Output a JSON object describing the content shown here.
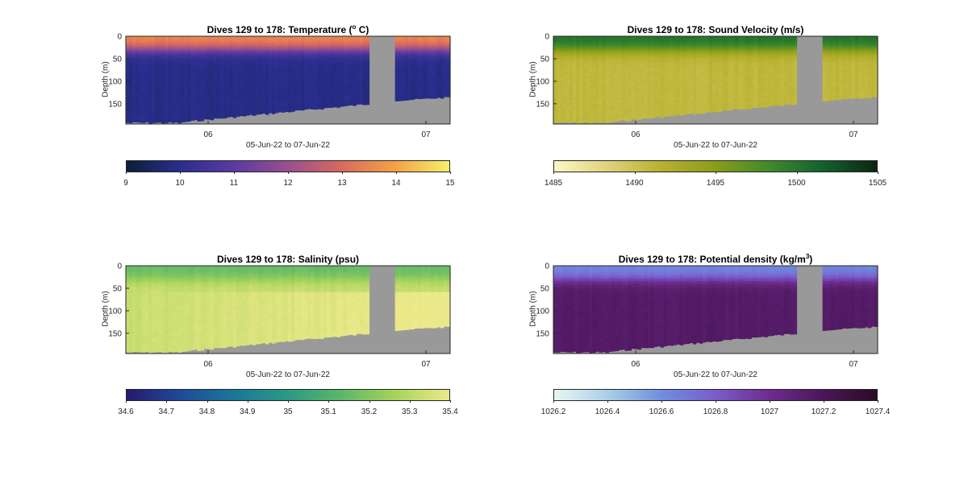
{
  "chart_data": [
    {
      "type": "heatmap",
      "title_main": "Dives 129 to 178: Temperature (",
      "title_sup": "o",
      "title_tail": " C)",
      "ylabel": "Depth (m)",
      "xlabel": "05-Jun-22 to 07-Jun-22",
      "x_ticks": [
        "06",
        "07"
      ],
      "y_ticks": [
        "0",
        "50",
        "100",
        "150"
      ],
      "ylim": [
        195,
        0
      ],
      "colorbar_ticks": [
        "9",
        "10",
        "11",
        "12",
        "13",
        "14",
        "15"
      ],
      "colorbar_range": [
        9,
        15
      ],
      "colormap": [
        "#0b1f3a",
        "#2a2e8f",
        "#5a3aa0",
        "#9a4f8f",
        "#d86a5e",
        "#f6a244",
        "#f4f06a"
      ],
      "profile": {
        "surface": 13.6,
        "thermo_depth": 30,
        "deep": 9.9
      }
    },
    {
      "type": "heatmap",
      "title_main": "Dives 129 to 178: Sound Velocity (m/s)",
      "title_sup": "",
      "title_tail": "",
      "ylabel": "Depth (m)",
      "xlabel": "05-Jun-22 to 07-Jun-22",
      "x_ticks": [
        "06",
        "07"
      ],
      "y_ticks": [
        "0",
        "50",
        "100",
        "150"
      ],
      "ylim": [
        195,
        0
      ],
      "colorbar_ticks": [
        "1485",
        "1490",
        "1495",
        "1500",
        "1505"
      ],
      "colorbar_range": [
        1485,
        1505
      ],
      "colormap": [
        "#fbf8c4",
        "#dfd27a",
        "#b7b12f",
        "#8a9d17",
        "#3f8a2c",
        "#12612f",
        "#0e2414"
      ],
      "profile": {
        "surface": 1500.5,
        "thermo_depth": 30,
        "deep": 1491.0
      }
    },
    {
      "type": "heatmap",
      "title_main": "Dives 129 to 178: Salinity (psu)",
      "title_sup": "",
      "title_tail": "",
      "ylabel": "Depth (m)",
      "xlabel": "05-Jun-22 to 07-Jun-22",
      "x_ticks": [
        "06",
        "07"
      ],
      "y_ticks": [
        "0",
        "50",
        "100",
        "150"
      ],
      "ylim": [
        195,
        0
      ],
      "colorbar_ticks": [
        "34.6",
        "34.7",
        "34.8",
        "34.9",
        "35",
        "35.1",
        "35.2",
        "35.3",
        "35.4"
      ],
      "colorbar_range": [
        34.6,
        35.4
      ],
      "colormap": [
        "#26196b",
        "#1f4a9a",
        "#19779a",
        "#2a9a84",
        "#5ab868",
        "#a8d35a",
        "#ece98a"
      ],
      "profile": {
        "surface": 35.15,
        "thermo_depth": 30,
        "deep": 35.33
      }
    },
    {
      "type": "heatmap",
      "title_main": "Dives 129 to 178: Potential density (kg/m",
      "title_sup": "3",
      "title_tail": ")",
      "ylabel": "Depth (m)",
      "xlabel": "05-Jun-22 to 07-Jun-22",
      "x_ticks": [
        "06",
        "07"
      ],
      "y_ticks": [
        "0",
        "50",
        "100",
        "150"
      ],
      "ylim": [
        195,
        0
      ],
      "colorbar_ticks": [
        "1026.2",
        "1026.4",
        "1026.6",
        "1026.8",
        "1027",
        "1027.2",
        "1027.4"
      ],
      "colorbar_range": [
        1026.2,
        1027.4
      ],
      "colormap": [
        "#e8f5f4",
        "#a9cfe8",
        "#6f8ee0",
        "#7a5ccc",
        "#6d2c8f",
        "#4b1658",
        "#2a0b24"
      ],
      "profile": {
        "surface": 1026.62,
        "thermo_depth": 30,
        "deep": 1027.15
      }
    }
  ]
}
